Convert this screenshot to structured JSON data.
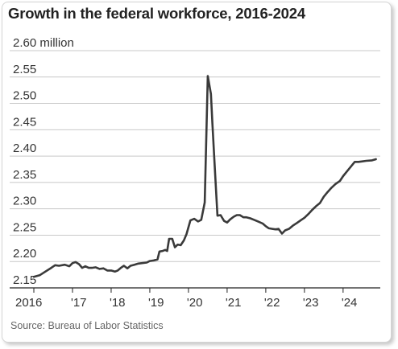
{
  "title": "Growth in the federal workforce, 2016-2024",
  "source": "Source: Bureau of Labor Statistics",
  "colors": {
    "line": "#3a3a3a",
    "grid": "#c8c8c8",
    "axis": "#222222",
    "text": "#333333"
  },
  "chart_data": {
    "type": "line",
    "title": "Growth in the federal workforce, 2016-2024",
    "xlabel": "",
    "ylabel": "",
    "ylim": [
      2.15,
      2.6
    ],
    "xlim": [
      2016.0,
      2024.92
    ],
    "grid": true,
    "y_ticks": [
      2.15,
      2.2,
      2.25,
      2.3,
      2.35,
      2.4,
      2.45,
      2.5,
      2.55,
      2.6
    ],
    "y_tick_labels": [
      "2.15",
      "2.20",
      "2.25",
      "2.30",
      "2.35",
      "2.40",
      "2.45",
      "2.50",
      "2.55",
      "2.60 million"
    ],
    "x_ticks": [
      2016,
      2017,
      2018,
      2019,
      2020,
      2021,
      2022,
      2023,
      2024
    ],
    "x_tick_labels": [
      "2016",
      "'17",
      "'18",
      "'19",
      "'20",
      "'21",
      "'22",
      "'23",
      "'24"
    ],
    "series": [
      {
        "x": [
          2016.0,
          2016.15,
          2016.3,
          2016.45,
          2016.55,
          2016.65,
          2016.8,
          2016.92,
          2017.0,
          2017.08,
          2017.17,
          2017.25,
          2017.33,
          2017.42,
          2017.5,
          2017.6,
          2017.7,
          2017.8,
          2017.9,
          2018.0,
          2018.1,
          2018.17,
          2018.25,
          2018.33,
          2018.42,
          2018.5,
          2018.6,
          2018.7,
          2018.8,
          2018.92,
          2019.0,
          2019.1,
          2019.2,
          2019.25,
          2019.33,
          2019.4,
          2019.45,
          2019.5,
          2019.58,
          2019.65,
          2019.72,
          2019.8,
          2019.88,
          2019.95,
          2020.05,
          2020.15,
          2020.25,
          2020.33,
          2020.42,
          2020.5,
          2020.58,
          2020.62,
          2020.68,
          2020.75,
          2020.83,
          2020.92,
          2021.0,
          2021.08,
          2021.17,
          2021.25,
          2021.33,
          2021.42,
          2021.5,
          2021.6,
          2021.7,
          2021.8,
          2021.92,
          2022.0,
          2022.08,
          2022.17,
          2022.25,
          2022.33,
          2022.42,
          2022.5,
          2022.6,
          2022.7,
          2022.8,
          2022.92,
          2023.0,
          2023.1,
          2023.2,
          2023.3,
          2023.4,
          2023.5,
          2023.6,
          2023.7,
          2023.8,
          2023.92,
          2024.0,
          2024.1,
          2024.2,
          2024.3,
          2024.4,
          2024.5,
          2024.6,
          2024.75,
          2024.85
        ],
        "values": [
          2.171,
          2.174,
          2.181,
          2.188,
          2.193,
          2.192,
          2.194,
          2.191,
          2.197,
          2.199,
          2.195,
          2.188,
          2.191,
          2.188,
          2.188,
          2.189,
          2.186,
          2.187,
          2.183,
          2.183,
          2.181,
          2.183,
          2.188,
          2.192,
          2.187,
          2.192,
          2.194,
          2.196,
          2.197,
          2.198,
          2.201,
          2.202,
          2.204,
          2.219,
          2.22,
          2.222,
          2.22,
          2.243,
          2.243,
          2.227,
          2.232,
          2.231,
          2.24,
          2.252,
          2.278,
          2.281,
          2.276,
          2.279,
          2.312,
          2.552,
          2.518,
          2.46,
          2.378,
          2.287,
          2.288,
          2.277,
          2.274,
          2.28,
          2.285,
          2.288,
          2.288,
          2.284,
          2.284,
          2.282,
          2.279,
          2.276,
          2.272,
          2.267,
          2.263,
          2.262,
          2.261,
          2.262,
          2.253,
          2.259,
          2.262,
          2.268,
          2.273,
          2.279,
          2.283,
          2.29,
          2.298,
          2.305,
          2.311,
          2.323,
          2.332,
          2.34,
          2.347,
          2.353,
          2.362,
          2.371,
          2.38,
          2.389,
          2.389,
          2.39,
          2.391,
          2.392,
          2.394
        ]
      }
    ]
  }
}
